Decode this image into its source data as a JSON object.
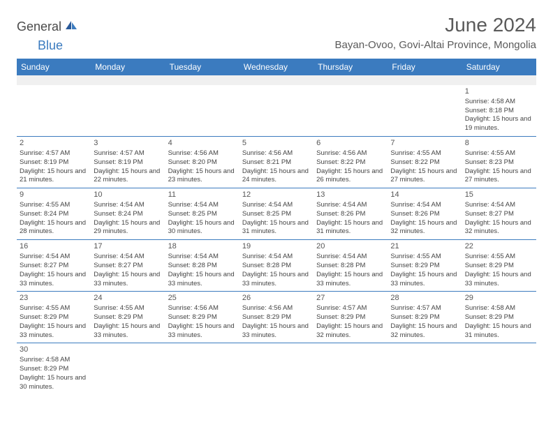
{
  "logo": {
    "text1": "General",
    "text2": "Blue"
  },
  "title": "June 2024",
  "location": "Bayan-Ovoo, Govi-Altai Province, Mongolia",
  "colors": {
    "header_bg": "#3b7bbf",
    "header_text": "#ffffff",
    "rule": "#3b7bbf",
    "text": "#444444"
  },
  "daysOfWeek": [
    "Sunday",
    "Monday",
    "Tuesday",
    "Wednesday",
    "Thursday",
    "Friday",
    "Saturday"
  ],
  "weeks": [
    [
      null,
      null,
      null,
      null,
      null,
      null,
      {
        "n": "1",
        "sr": "Sunrise: 4:58 AM",
        "ss": "Sunset: 8:18 PM",
        "dl": "Daylight: 15 hours and 19 minutes."
      }
    ],
    [
      {
        "n": "2",
        "sr": "Sunrise: 4:57 AM",
        "ss": "Sunset: 8:19 PM",
        "dl": "Daylight: 15 hours and 21 minutes."
      },
      {
        "n": "3",
        "sr": "Sunrise: 4:57 AM",
        "ss": "Sunset: 8:19 PM",
        "dl": "Daylight: 15 hours and 22 minutes."
      },
      {
        "n": "4",
        "sr": "Sunrise: 4:56 AM",
        "ss": "Sunset: 8:20 PM",
        "dl": "Daylight: 15 hours and 23 minutes."
      },
      {
        "n": "5",
        "sr": "Sunrise: 4:56 AM",
        "ss": "Sunset: 8:21 PM",
        "dl": "Daylight: 15 hours and 24 minutes."
      },
      {
        "n": "6",
        "sr": "Sunrise: 4:56 AM",
        "ss": "Sunset: 8:22 PM",
        "dl": "Daylight: 15 hours and 26 minutes."
      },
      {
        "n": "7",
        "sr": "Sunrise: 4:55 AM",
        "ss": "Sunset: 8:22 PM",
        "dl": "Daylight: 15 hours and 27 minutes."
      },
      {
        "n": "8",
        "sr": "Sunrise: 4:55 AM",
        "ss": "Sunset: 8:23 PM",
        "dl": "Daylight: 15 hours and 27 minutes."
      }
    ],
    [
      {
        "n": "9",
        "sr": "Sunrise: 4:55 AM",
        "ss": "Sunset: 8:24 PM",
        "dl": "Daylight: 15 hours and 28 minutes."
      },
      {
        "n": "10",
        "sr": "Sunrise: 4:54 AM",
        "ss": "Sunset: 8:24 PM",
        "dl": "Daylight: 15 hours and 29 minutes."
      },
      {
        "n": "11",
        "sr": "Sunrise: 4:54 AM",
        "ss": "Sunset: 8:25 PM",
        "dl": "Daylight: 15 hours and 30 minutes."
      },
      {
        "n": "12",
        "sr": "Sunrise: 4:54 AM",
        "ss": "Sunset: 8:25 PM",
        "dl": "Daylight: 15 hours and 31 minutes."
      },
      {
        "n": "13",
        "sr": "Sunrise: 4:54 AM",
        "ss": "Sunset: 8:26 PM",
        "dl": "Daylight: 15 hours and 31 minutes."
      },
      {
        "n": "14",
        "sr": "Sunrise: 4:54 AM",
        "ss": "Sunset: 8:26 PM",
        "dl": "Daylight: 15 hours and 32 minutes."
      },
      {
        "n": "15",
        "sr": "Sunrise: 4:54 AM",
        "ss": "Sunset: 8:27 PM",
        "dl": "Daylight: 15 hours and 32 minutes."
      }
    ],
    [
      {
        "n": "16",
        "sr": "Sunrise: 4:54 AM",
        "ss": "Sunset: 8:27 PM",
        "dl": "Daylight: 15 hours and 33 minutes."
      },
      {
        "n": "17",
        "sr": "Sunrise: 4:54 AM",
        "ss": "Sunset: 8:27 PM",
        "dl": "Daylight: 15 hours and 33 minutes."
      },
      {
        "n": "18",
        "sr": "Sunrise: 4:54 AM",
        "ss": "Sunset: 8:28 PM",
        "dl": "Daylight: 15 hours and 33 minutes."
      },
      {
        "n": "19",
        "sr": "Sunrise: 4:54 AM",
        "ss": "Sunset: 8:28 PM",
        "dl": "Daylight: 15 hours and 33 minutes."
      },
      {
        "n": "20",
        "sr": "Sunrise: 4:54 AM",
        "ss": "Sunset: 8:28 PM",
        "dl": "Daylight: 15 hours and 33 minutes."
      },
      {
        "n": "21",
        "sr": "Sunrise: 4:55 AM",
        "ss": "Sunset: 8:29 PM",
        "dl": "Daylight: 15 hours and 33 minutes."
      },
      {
        "n": "22",
        "sr": "Sunrise: 4:55 AM",
        "ss": "Sunset: 8:29 PM",
        "dl": "Daylight: 15 hours and 33 minutes."
      }
    ],
    [
      {
        "n": "23",
        "sr": "Sunrise: 4:55 AM",
        "ss": "Sunset: 8:29 PM",
        "dl": "Daylight: 15 hours and 33 minutes."
      },
      {
        "n": "24",
        "sr": "Sunrise: 4:55 AM",
        "ss": "Sunset: 8:29 PM",
        "dl": "Daylight: 15 hours and 33 minutes."
      },
      {
        "n": "25",
        "sr": "Sunrise: 4:56 AM",
        "ss": "Sunset: 8:29 PM",
        "dl": "Daylight: 15 hours and 33 minutes."
      },
      {
        "n": "26",
        "sr": "Sunrise: 4:56 AM",
        "ss": "Sunset: 8:29 PM",
        "dl": "Daylight: 15 hours and 33 minutes."
      },
      {
        "n": "27",
        "sr": "Sunrise: 4:57 AM",
        "ss": "Sunset: 8:29 PM",
        "dl": "Daylight: 15 hours and 32 minutes."
      },
      {
        "n": "28",
        "sr": "Sunrise: 4:57 AM",
        "ss": "Sunset: 8:29 PM",
        "dl": "Daylight: 15 hours and 32 minutes."
      },
      {
        "n": "29",
        "sr": "Sunrise: 4:58 AM",
        "ss": "Sunset: 8:29 PM",
        "dl": "Daylight: 15 hours and 31 minutes."
      }
    ],
    [
      {
        "n": "30",
        "sr": "Sunrise: 4:58 AM",
        "ss": "Sunset: 8:29 PM",
        "dl": "Daylight: 15 hours and 30 minutes."
      },
      null,
      null,
      null,
      null,
      null,
      null
    ]
  ]
}
